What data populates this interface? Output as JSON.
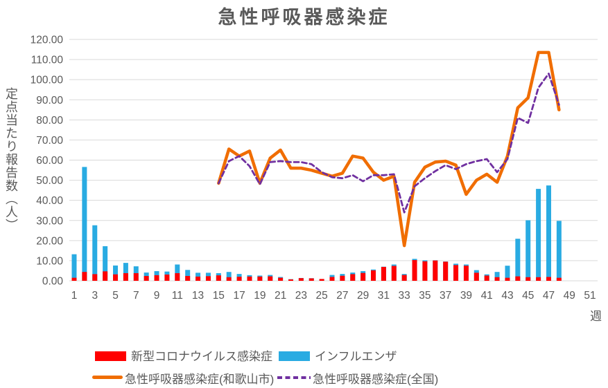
{
  "colors": {
    "covid": "#FF0000",
    "flu": "#29ABE2",
    "wakayama": "#F06D00",
    "national": "#7030A0",
    "grid": "#D9D9D9",
    "text": "#595959"
  },
  "chart_data": {
    "type": "combo_bar_line",
    "title": "急性呼吸器感染症",
    "xlabel": "週",
    "ylabel": "定点当たり報告数（人）",
    "ylim": [
      0,
      120
    ],
    "y_tick_step": 10,
    "y_tick_format": "0.00",
    "grid": "horizontal",
    "legend_position": "bottom",
    "x_ticks": [
      1,
      3,
      5,
      7,
      9,
      11,
      13,
      15,
      17,
      19,
      21,
      23,
      25,
      27,
      29,
      31,
      33,
      35,
      37,
      39,
      41,
      43,
      45,
      47,
      49,
      51
    ],
    "series": [
      {
        "id": "covid",
        "name": "新型コロナウイルス感染症",
        "type": "bar",
        "color": "#FF0000",
        "values": [
          1.5,
          4.4,
          3.3,
          4.7,
          3.2,
          3.8,
          3.8,
          2.4,
          2.8,
          3.1,
          3.8,
          2.4,
          2.1,
          2.3,
          2.7,
          1.8,
          2.0,
          2.1,
          2.1,
          2.2,
          1.5,
          0.7,
          1.3,
          1.2,
          0.9,
          1.9,
          2.5,
          3.3,
          3.9,
          5.2,
          6.9,
          7.4,
          2.9,
          10.3,
          9.7,
          10.1,
          9.5,
          7.8,
          7.5,
          4.0,
          2.6,
          1.8,
          1.5,
          2.2,
          1.8,
          1.8,
          1.9,
          1.5
        ]
      },
      {
        "id": "flu",
        "name": "インフルエンザ",
        "type": "bar",
        "color": "#29ABE2",
        "values": [
          13.2,
          56.6,
          27.6,
          17.2,
          7.6,
          8.9,
          7.2,
          4.1,
          4.8,
          4.6,
          8.1,
          5.4,
          4.0,
          4.0,
          3.8,
          4.4,
          3.4,
          2.8,
          2.6,
          2.9,
          1.9,
          0.8,
          1.4,
          1.3,
          0.7,
          2.9,
          3.4,
          4.1,
          4.8,
          5.6,
          7.0,
          8.1,
          3.4,
          10.9,
          10.2,
          10.2,
          9.6,
          8.5,
          8.1,
          5.3,
          3.2,
          4.4,
          7.5,
          20.9,
          30.1,
          45.7,
          47.4,
          29.8
        ]
      },
      {
        "id": "wakayama",
        "name": "急性呼吸器感染症(和歌山市)",
        "type": "line",
        "color": "#F06D00",
        "width": 4.5,
        "dash": "",
        "values": [
          null,
          null,
          null,
          null,
          null,
          null,
          null,
          null,
          null,
          null,
          null,
          null,
          null,
          null,
          48.5,
          65.5,
          62,
          64.5,
          48.5,
          61,
          65,
          56,
          56,
          55,
          53.5,
          52,
          53.5,
          62,
          61,
          54,
          50,
          52,
          17.5,
          49,
          56.5,
          59,
          59.5,
          57.5,
          43,
          50,
          53,
          49,
          62,
          86,
          91,
          113.5,
          113.5,
          85
        ]
      },
      {
        "id": "national",
        "name": "急性呼吸器感染症(全国)",
        "type": "line",
        "color": "#7030A0",
        "width": 2.8,
        "dash": "7 4.5",
        "values": [
          null,
          null,
          null,
          null,
          null,
          null,
          null,
          null,
          null,
          null,
          null,
          null,
          null,
          null,
          48.5,
          59.5,
          62,
          57,
          48,
          59,
          59.5,
          59,
          59,
          58,
          54,
          51.5,
          51,
          52.5,
          49.5,
          52.5,
          52.5,
          53,
          34,
          47,
          51,
          54.5,
          57.5,
          55.5,
          58,
          59.5,
          60.5,
          54,
          60.5,
          81,
          78.5,
          96,
          103,
          87.5
        ]
      }
    ]
  }
}
